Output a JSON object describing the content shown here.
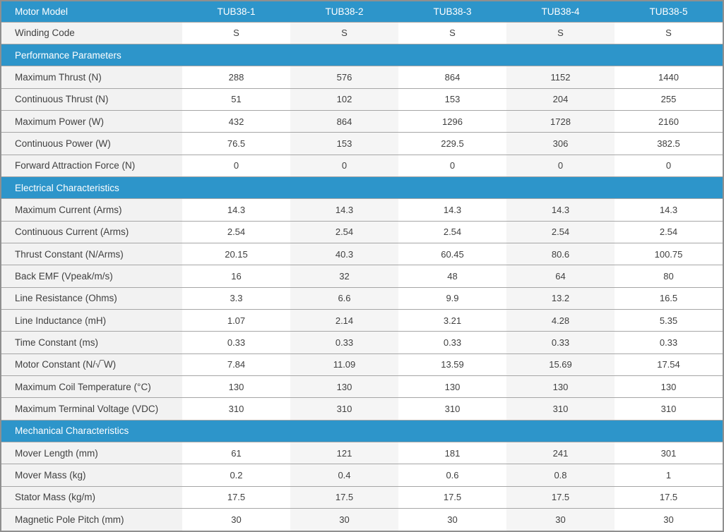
{
  "colors": {
    "header_blue": "#2d95ca",
    "header_text": "#ffffff",
    "label_bg": "#f2f2f2",
    "alt_col_bg": "#f5f5f5",
    "row_border": "#a6a6a6",
    "outer_border": "#8f8f8f",
    "text_color": "#404040",
    "cell_bg": "#ffffff"
  },
  "table": {
    "header": {
      "label": "Motor Model",
      "columns": [
        "TUB38-1",
        "TUB38-2",
        "TUB38-3",
        "TUB38-4",
        "TUB38-5"
      ]
    },
    "rows": [
      {
        "type": "data",
        "label": "Winding Code",
        "values": [
          "S",
          "S",
          "S",
          "S",
          "S"
        ]
      },
      {
        "type": "section",
        "label": "Performance Parameters"
      },
      {
        "type": "data",
        "label": "Maximum Thrust (N)",
        "values": [
          "288",
          "576",
          "864",
          "1152",
          "1440"
        ]
      },
      {
        "type": "data",
        "label": "Continuous Thrust (N)",
        "values": [
          "51",
          "102",
          "153",
          "204",
          "255"
        ]
      },
      {
        "type": "data",
        "label": "Maximum Power (W)",
        "values": [
          "432",
          "864",
          "1296",
          "1728",
          "2160"
        ]
      },
      {
        "type": "data",
        "label": "Continuous Power (W)",
        "values": [
          "76.5",
          "153",
          "229.5",
          "306",
          "382.5"
        ]
      },
      {
        "type": "data",
        "label": "Forward Attraction Force (N)",
        "values": [
          "0",
          "0",
          "0",
          "0",
          "0"
        ]
      },
      {
        "type": "section",
        "label": "Electrical Characteristics"
      },
      {
        "type": "data",
        "label": "Maximum Current (Arms)",
        "values": [
          "14.3",
          "14.3",
          "14.3",
          "14.3",
          "14.3"
        ]
      },
      {
        "type": "data",
        "label": "Continuous Current (Arms)",
        "values": [
          "2.54",
          "2.54",
          "2.54",
          "2.54",
          "2.54"
        ]
      },
      {
        "type": "data",
        "label": "Thrust Constant (N/Arms)",
        "values": [
          "20.15",
          "40.3",
          "60.45",
          "80.6",
          "100.75"
        ]
      },
      {
        "type": "data",
        "label": "Back EMF (Vpeak/m/s)",
        "values": [
          "16",
          "32",
          "48",
          "64",
          "80"
        ]
      },
      {
        "type": "data",
        "label": "Line Resistance (Ohms)",
        "values": [
          "3.3",
          "6.6",
          "9.9",
          "13.2",
          "16.5"
        ]
      },
      {
        "type": "data",
        "label": "Line Inductance (mH)",
        "values": [
          "1.07",
          "2.14",
          "3.21",
          "4.28",
          "5.35"
        ]
      },
      {
        "type": "data",
        "label": "Time Constant (ms)",
        "values": [
          "0.33",
          "0.33",
          "0.33",
          "0.33",
          "0.33"
        ]
      },
      {
        "type": "data",
        "label": "Motor Constant (N/√‾W)",
        "values": [
          "7.84",
          "11.09",
          "13.59",
          "15.69",
          "17.54"
        ]
      },
      {
        "type": "data",
        "label": "Maximum Coil Temperature (°C)",
        "values": [
          "130",
          "130",
          "130",
          "130",
          "130"
        ]
      },
      {
        "type": "data",
        "label": "Maximum Terminal Voltage (VDC)",
        "values": [
          "310",
          "310",
          "310",
          "310",
          "310"
        ]
      },
      {
        "type": "section",
        "label": "Mechanical Characteristics"
      },
      {
        "type": "data",
        "label": "Mover Length (mm)",
        "values": [
          "61",
          "121",
          "181",
          "241",
          "301"
        ]
      },
      {
        "type": "data",
        "label": "Mover Mass (kg)",
        "values": [
          "0.2",
          "0.4",
          "0.6",
          "0.8",
          "1"
        ]
      },
      {
        "type": "data",
        "label": "Stator Mass (kg/m)",
        "values": [
          "17.5",
          "17.5",
          "17.5",
          "17.5",
          "17.5"
        ]
      },
      {
        "type": "data",
        "label": "Magnetic Pole Pitch (mm)",
        "values": [
          "30",
          "30",
          "30",
          "30",
          "30"
        ]
      }
    ]
  }
}
